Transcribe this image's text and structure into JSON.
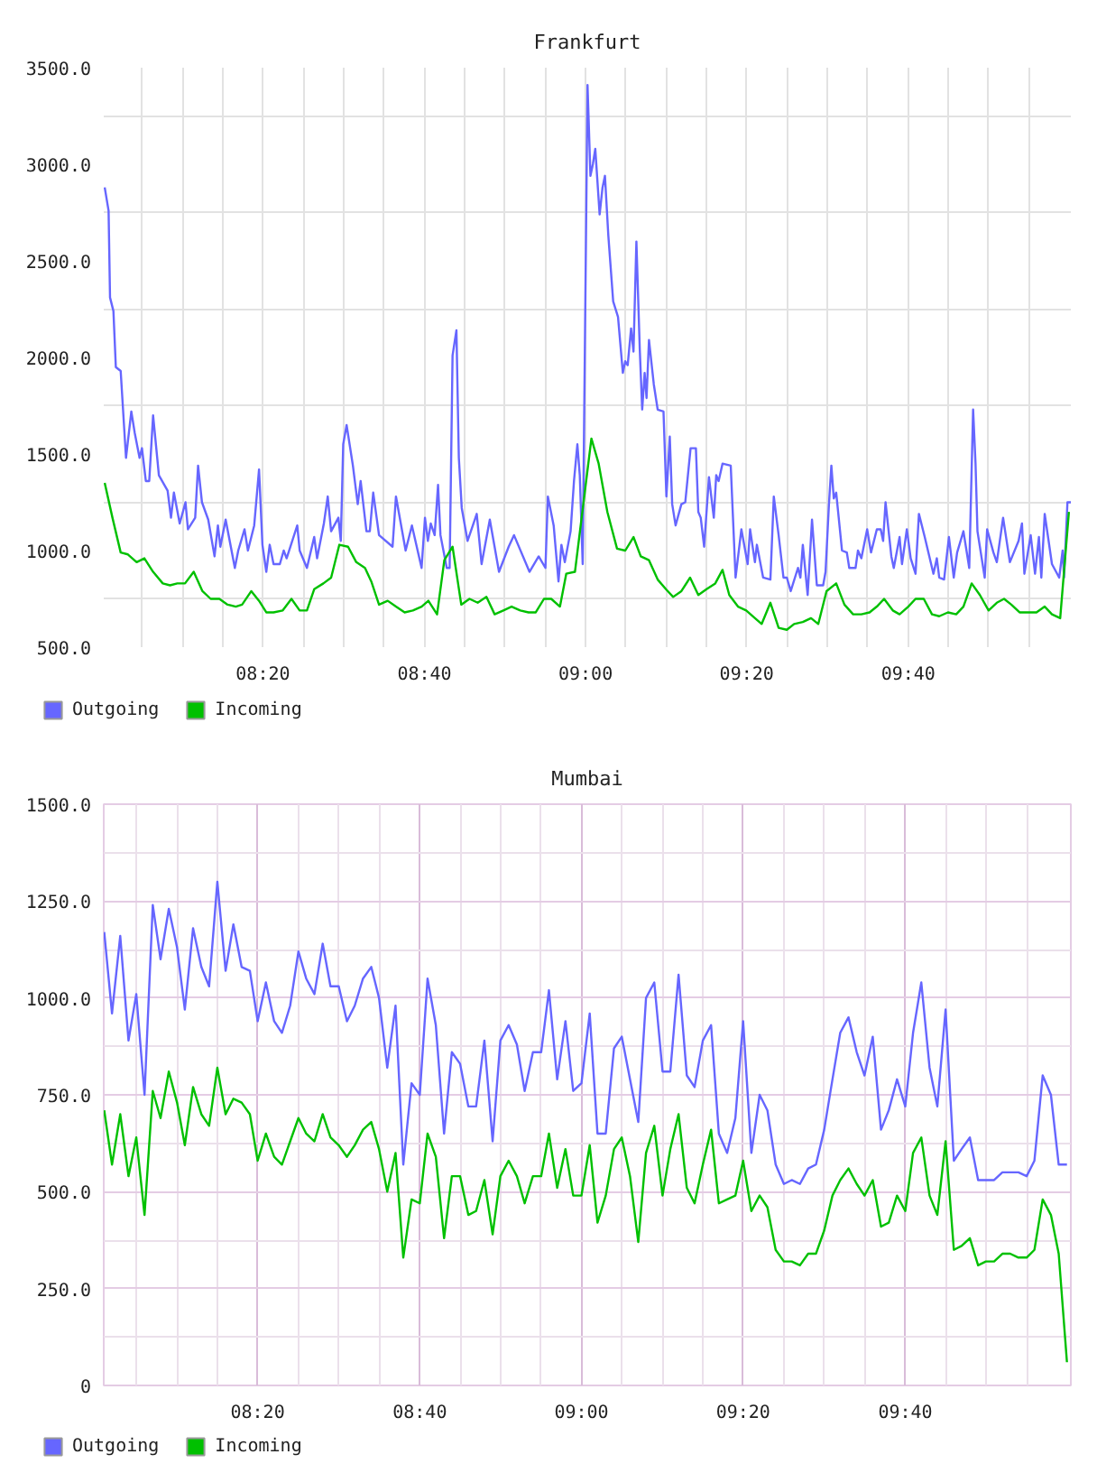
{
  "chart_data": [
    {
      "type": "line",
      "title": "Frankfurt",
      "xlim": [
        8.004,
        10.003
      ],
      "ylim": [
        500,
        3500
      ],
      "xticks": [
        {
          "value": 8.083,
          "label": null
        },
        {
          "value": 8.167,
          "label": null
        },
        {
          "value": 8.25,
          "label": null
        },
        {
          "value": 8.333,
          "label": "08:20"
        },
        {
          "value": 8.417,
          "label": null
        },
        {
          "value": 8.5,
          "label": null
        },
        {
          "value": 8.583,
          "label": null
        },
        {
          "value": 8.667,
          "label": "08:40"
        },
        {
          "value": 8.75,
          "label": null
        },
        {
          "value": 8.833,
          "label": null
        },
        {
          "value": 8.917,
          "label": null
        },
        {
          "value": 9.0,
          "label": "09:00"
        },
        {
          "value": 9.083,
          "label": null
        },
        {
          "value": 9.167,
          "label": null
        },
        {
          "value": 9.25,
          "label": null
        },
        {
          "value": 9.333,
          "label": "09:20"
        },
        {
          "value": 9.417,
          "label": null
        },
        {
          "value": 9.5,
          "label": null
        },
        {
          "value": 9.583,
          "label": null
        },
        {
          "value": 9.667,
          "label": "09:40"
        },
        {
          "value": 9.75,
          "label": null
        },
        {
          "value": 9.833,
          "label": null
        },
        {
          "value": 9.917,
          "label": null
        }
      ],
      "yticks": [
        {
          "value": 500,
          "label": "500.0"
        },
        {
          "value": 750,
          "label": null
        },
        {
          "value": 1000,
          "label": "1000.0"
        },
        {
          "value": 1250,
          "label": null
        },
        {
          "value": 1500,
          "label": "1500.0"
        },
        {
          "value": 1750,
          "label": null
        },
        {
          "value": 2000,
          "label": "2000.0"
        },
        {
          "value": 2250,
          "label": null
        },
        {
          "value": 2500,
          "label": "2500.0"
        },
        {
          "value": 2750,
          "label": null
        },
        {
          "value": 3000,
          "label": "3000.0"
        },
        {
          "value": 3250,
          "label": null
        },
        {
          "value": 3500,
          "label": "3500.0"
        }
      ],
      "grid": true,
      "legend": "bottom left",
      "line_style": "solid",
      "series": [
        {
          "name": "Outgoing",
          "color": "#6666ff",
          "x": [
            8.006,
            8.014,
            8.017,
            8.024,
            8.029,
            8.039,
            8.05,
            8.061,
            8.068,
            8.078,
            8.083,
            8.091,
            8.098,
            8.106,
            8.118,
            8.136,
            8.143,
            8.149,
            8.161,
            8.173,
            8.178,
            8.193,
            8.199,
            8.207,
            8.22,
            8.233,
            8.24,
            8.245,
            8.256,
            8.275,
            8.282,
            8.295,
            8.302,
            8.315,
            8.325,
            8.332,
            8.34,
            8.347,
            8.355,
            8.368,
            8.376,
            8.382,
            8.404,
            8.409,
            8.424,
            8.439,
            8.445,
            8.459,
            8.467,
            8.474,
            8.489,
            8.494,
            8.499,
            8.506,
            8.519,
            8.529,
            8.535,
            8.547,
            8.554,
            8.561,
            8.573,
            8.601,
            8.608,
            8.628,
            8.641,
            8.661,
            8.668,
            8.674,
            8.68,
            8.688,
            8.695,
            8.7,
            8.713,
            8.719,
            8.725,
            8.733,
            8.738,
            8.744,
            8.756,
            8.775,
            8.785,
            8.802,
            8.821,
            8.841,
            8.852,
            8.884,
            8.903,
            8.917,
            8.922,
            8.934,
            8.944,
            8.95,
            8.957,
            8.969,
            8.976,
            8.983,
            8.988,
            8.994,
            9.004,
            9.01,
            9.015,
            9.02,
            9.029,
            9.035,
            9.04,
            9.047,
            9.057,
            9.067,
            9.077,
            9.082,
            9.087,
            9.094,
            9.099,
            9.105,
            9.112,
            9.117,
            9.122,
            9.126,
            9.131,
            9.141,
            9.149,
            9.161,
            9.167,
            9.174,
            9.179,
            9.186,
            9.198,
            9.206,
            9.217,
            9.228,
            9.233,
            9.238,
            9.245,
            9.255,
            9.265,
            9.27,
            9.275,
            9.283,
            9.3,
            9.31,
            9.322,
            9.335,
            9.34,
            9.35,
            9.354,
            9.367,
            9.382,
            9.389,
            9.399,
            9.409,
            9.416,
            9.424,
            9.439,
            9.444,
            9.449,
            9.459,
            9.468,
            9.478,
            9.491,
            9.496,
            9.503,
            9.508,
            9.513,
            9.518,
            9.53,
            9.54,
            9.545,
            9.558,
            9.563,
            9.57,
            9.582,
            9.59,
            9.602,
            9.61,
            9.615,
            9.62,
            9.632,
            9.637,
            9.649,
            9.654,
            9.664,
            9.672,
            9.682,
            9.689,
            9.701,
            9.719,
            9.726,
            9.731,
            9.741,
            9.751,
            9.761,
            9.768,
            9.781,
            9.793,
            9.801,
            9.806,
            9.81,
            9.825,
            9.83,
            9.843,
            9.85,
            9.863,
            9.877,
            9.895,
            9.902,
            9.907,
            9.92,
            9.929,
            9.937,
            9.942,
            9.949,
            9.964,
            9.979,
            9.986,
            9.989,
            9.996,
            10.003
          ],
          "values": [
            2880,
            2760,
            2310,
            2240,
            1950,
            1930,
            1480,
            1720,
            1610,
            1480,
            1530,
            1360,
            1360,
            1700,
            1390,
            1310,
            1170,
            1300,
            1140,
            1250,
            1110,
            1170,
            1440,
            1250,
            1160,
            970,
            1130,
            1020,
            1160,
            910,
            1000,
            1110,
            1000,
            1130,
            1420,
            1030,
            890,
            1030,
            930,
            930,
            1000,
            960,
            1130,
            1000,
            910,
            1070,
            960,
            1140,
            1280,
            1100,
            1170,
            1050,
            1550,
            1650,
            1440,
            1240,
            1360,
            1100,
            1100,
            1300,
            1080,
            1020,
            1280,
            1000,
            1130,
            910,
            1170,
            1050,
            1140,
            1080,
            1340,
            1080,
            910,
            910,
            2010,
            2140,
            1480,
            1220,
            1050,
            1190,
            930,
            1160,
            890,
            1020,
            1080,
            890,
            970,
            910,
            1280,
            1130,
            840,
            1030,
            940,
            1100,
            1360,
            1550,
            1390,
            930,
            3410,
            2940,
            3000,
            3080,
            2740,
            2880,
            2940,
            2630,
            2290,
            2210,
            1920,
            1980,
            1960,
            2150,
            2030,
            2600,
            2040,
            1730,
            1920,
            1790,
            2090,
            1860,
            1730,
            1720,
            1280,
            1590,
            1240,
            1130,
            1240,
            1250,
            1530,
            1530,
            1200,
            1170,
            1020,
            1380,
            1170,
            1390,
            1360,
            1450,
            1440,
            860,
            1110,
            930,
            1110,
            940,
            1030,
            860,
            850,
            1280,
            1080,
            860,
            860,
            790,
            910,
            860,
            1030,
            770,
            1160,
            820,
            820,
            890,
            1240,
            1440,
            1270,
            1300,
            1000,
            990,
            910,
            910,
            1000,
            960,
            1110,
            990,
            1110,
            1110,
            1050,
            1250,
            970,
            910,
            1070,
            930,
            1110,
            960,
            880,
            1190,
            1070,
            880,
            960,
            860,
            850,
            1070,
            860,
            990,
            1100,
            910,
            1730,
            1450,
            1100,
            860,
            1110,
            990,
            940,
            1170,
            940,
            1050,
            1140,
            880,
            1080,
            880,
            1070,
            860,
            1190,
            930,
            860,
            1000,
            860,
            1250,
            1250
          ]
        },
        {
          "name": "Incoming",
          "color": "#00c000",
          "x": [
            8.006,
            8.022,
            8.039,
            8.054,
            8.072,
            8.088,
            8.106,
            8.126,
            8.141,
            8.156,
            8.172,
            8.19,
            8.208,
            8.225,
            8.243,
            8.26,
            8.277,
            8.29,
            8.309,
            8.325,
            8.34,
            8.355,
            8.374,
            8.392,
            8.409,
            8.424,
            8.439,
            8.458,
            8.474,
            8.491,
            8.509,
            8.526,
            8.544,
            8.557,
            8.573,
            8.591,
            8.608,
            8.626,
            8.643,
            8.661,
            8.675,
            8.693,
            8.708,
            8.725,
            8.743,
            8.76,
            8.777,
            8.795,
            8.812,
            8.83,
            8.847,
            8.865,
            8.882,
            8.897,
            8.914,
            8.929,
            8.947,
            8.96,
            8.978,
            9.012,
            9.027,
            9.045,
            9.065,
            9.082,
            9.099,
            9.114,
            9.131,
            9.149,
            9.166,
            9.181,
            9.198,
            9.216,
            9.233,
            9.25,
            9.268,
            9.283,
            9.297,
            9.315,
            9.332,
            9.35,
            9.364,
            9.382,
            9.399,
            9.416,
            9.431,
            9.449,
            9.466,
            9.481,
            9.498,
            9.518,
            9.535,
            9.553,
            9.57,
            9.587,
            9.602,
            9.617,
            9.635,
            9.649,
            9.667,
            9.682,
            9.699,
            9.716,
            9.731,
            9.749,
            9.766,
            9.781,
            9.798,
            9.815,
            9.833,
            9.85,
            9.865,
            9.88,
            9.897,
            9.915,
            9.932,
            9.949,
            9.964,
            9.981,
            9.999
          ],
          "values": [
            1350,
            1170,
            990,
            980,
            940,
            960,
            890,
            830,
            820,
            830,
            830,
            890,
            790,
            750,
            750,
            720,
            710,
            720,
            790,
            740,
            680,
            680,
            690,
            750,
            690,
            690,
            800,
            830,
            860,
            1030,
            1020,
            940,
            910,
            840,
            720,
            740,
            710,
            680,
            690,
            710,
            740,
            670,
            950,
            1020,
            720,
            750,
            730,
            760,
            670,
            690,
            710,
            690,
            680,
            680,
            750,
            750,
            710,
            880,
            890,
            1580,
            1450,
            1200,
            1010,
            1000,
            1070,
            970,
            950,
            850,
            800,
            760,
            790,
            860,
            770,
            800,
            830,
            900,
            770,
            710,
            690,
            650,
            620,
            730,
            600,
            590,
            620,
            630,
            650,
            620,
            790,
            830,
            720,
            670,
            670,
            680,
            710,
            750,
            690,
            670,
            710,
            750,
            750,
            670,
            660,
            680,
            670,
            710,
            830,
            770,
            690,
            730,
            750,
            720,
            680,
            680,
            680,
            710,
            670,
            650,
            1200
          ]
        }
      ]
    },
    {
      "type": "line",
      "title": "Mumbai",
      "xlim": [
        8.016,
        10.008
      ],
      "ylim": [
        0,
        1500
      ],
      "xticks": [
        {
          "value": 8.083,
          "label": null
        },
        {
          "value": 8.167,
          "label": null
        },
        {
          "value": 8.25,
          "label": null
        },
        {
          "value": 8.333,
          "label": "08:20"
        },
        {
          "value": 8.417,
          "label": null
        },
        {
          "value": 8.5,
          "label": null
        },
        {
          "value": 8.583,
          "label": null
        },
        {
          "value": 8.667,
          "label": "08:40"
        },
        {
          "value": 8.75,
          "label": null
        },
        {
          "value": 8.833,
          "label": null
        },
        {
          "value": 8.917,
          "label": null
        },
        {
          "value": 9.0,
          "label": "09:00"
        },
        {
          "value": 9.083,
          "label": null
        },
        {
          "value": 9.167,
          "label": null
        },
        {
          "value": 9.25,
          "label": null
        },
        {
          "value": 9.333,
          "label": "09:20"
        },
        {
          "value": 9.417,
          "label": null
        },
        {
          "value": 9.5,
          "label": null
        },
        {
          "value": 9.583,
          "label": null
        },
        {
          "value": 9.667,
          "label": "09:40"
        },
        {
          "value": 9.75,
          "label": null
        },
        {
          "value": 9.833,
          "label": null
        },
        {
          "value": 9.917,
          "label": null
        }
      ],
      "yticks": [
        0,
        {
          "value": 125,
          "label": null
        },
        {
          "value": 250,
          "label": "250.0"
        },
        {
          "value": 375,
          "label": null
        },
        {
          "value": 500,
          "label": "500.0"
        },
        {
          "value": 625,
          "label": null
        },
        {
          "value": 750,
          "label": "750.0"
        },
        {
          "value": 875,
          "label": null
        },
        {
          "value": 1000,
          "label": "1000.0"
        },
        {
          "value": 1125,
          "label": null
        },
        {
          "value": 1250,
          "label": "1250.0"
        },
        {
          "value": 1375,
          "label": null
        },
        {
          "value": 1500,
          "label": "1500.0"
        }
      ],
      "grid": true,
      "legend": "bottom left",
      "line_style": "solid",
      "x": [
        8.017,
        8.033,
        8.05,
        8.067,
        8.083,
        8.1,
        8.117,
        8.133,
        8.15,
        8.167,
        8.183,
        8.2,
        8.217,
        8.233,
        8.25,
        8.267,
        8.283,
        8.3,
        8.317,
        8.333,
        8.35,
        8.367,
        8.383,
        8.4,
        8.417,
        8.433,
        8.45,
        8.467,
        8.483,
        8.5,
        8.517,
        8.533,
        8.55,
        8.567,
        8.583,
        8.6,
        8.617,
        8.633,
        8.65,
        8.667,
        8.683,
        8.7,
        8.717,
        8.733,
        8.75,
        8.767,
        8.783,
        8.8,
        8.817,
        8.833,
        8.85,
        8.867,
        8.883,
        8.9,
        8.917,
        8.933,
        8.95,
        8.967,
        8.983,
        9.0,
        9.017,
        9.033,
        9.05,
        9.067,
        9.083,
        9.1,
        9.117,
        9.133,
        9.15,
        9.167,
        9.183,
        9.2,
        9.217,
        9.233,
        9.25,
        9.267,
        9.283,
        9.3,
        9.317,
        9.333,
        9.35,
        9.367,
        9.383,
        9.4,
        9.417,
        9.433,
        9.45,
        9.467,
        9.483,
        9.5,
        9.517,
        9.533,
        9.55,
        9.567,
        9.583,
        9.6,
        9.617,
        9.633,
        9.65,
        9.667,
        9.683,
        9.7,
        9.717,
        9.733,
        9.75,
        9.767,
        9.783,
        9.8,
        9.817,
        9.833,
        9.85,
        9.867,
        9.883,
        9.9,
        9.917,
        9.933,
        9.95,
        9.967,
        9.983,
        10.0
      ],
      "series": [
        {
          "name": "Outgoing",
          "color": "#6666ff",
          "values": [
            1170,
            960,
            1160,
            890,
            1010,
            750,
            1240,
            1100,
            1230,
            1130,
            970,
            1180,
            1080,
            1030,
            1300,
            1070,
            1190,
            1080,
            1070,
            940,
            1040,
            940,
            910,
            980,
            1120,
            1050,
            1010,
            1140,
            1030,
            1030,
            940,
            980,
            1050,
            1080,
            1000,
            820,
            980,
            570,
            780,
            750,
            1050,
            930,
            650,
            860,
            830,
            720,
            720,
            890,
            630,
            890,
            930,
            880,
            760,
            860,
            860,
            1020,
            790,
            940,
            760,
            780,
            960,
            650,
            650,
            870,
            900,
            790,
            680,
            1000,
            1040,
            810,
            810,
            1060,
            800,
            770,
            890,
            930,
            650,
            600,
            690,
            940,
            600,
            750,
            710,
            570,
            520,
            530,
            520,
            560,
            570,
            660,
            790,
            910,
            950,
            860,
            800,
            900,
            660,
            710,
            790,
            720,
            910,
            1040,
            820,
            720,
            970,
            580,
            610,
            640,
            530,
            530,
            530,
            550,
            550,
            550,
            540,
            580,
            800,
            750,
            570,
            570
          ]
        },
        {
          "name": "Incoming",
          "color": "#00c000",
          "values": [
            710,
            570,
            700,
            540,
            640,
            440,
            760,
            690,
            810,
            730,
            620,
            770,
            700,
            670,
            820,
            700,
            740,
            730,
            700,
            580,
            650,
            590,
            570,
            630,
            690,
            650,
            630,
            700,
            640,
            620,
            590,
            620,
            660,
            680,
            610,
            500,
            600,
            330,
            480,
            470,
            650,
            590,
            380,
            540,
            540,
            440,
            450,
            530,
            390,
            540,
            580,
            540,
            470,
            540,
            540,
            650,
            510,
            610,
            490,
            490,
            620,
            420,
            490,
            610,
            640,
            540,
            370,
            600,
            670,
            490,
            610,
            700,
            510,
            470,
            570,
            660,
            470,
            480,
            490,
            580,
            450,
            490,
            460,
            350,
            320,
            320,
            310,
            340,
            340,
            400,
            490,
            530,
            560,
            520,
            490,
            530,
            410,
            420,
            490,
            450,
            600,
            640,
            490,
            440,
            630,
            350,
            360,
            380,
            310,
            320,
            320,
            340,
            340,
            330,
            330,
            350,
            480,
            440,
            340,
            60
          ]
        }
      ]
    }
  ]
}
